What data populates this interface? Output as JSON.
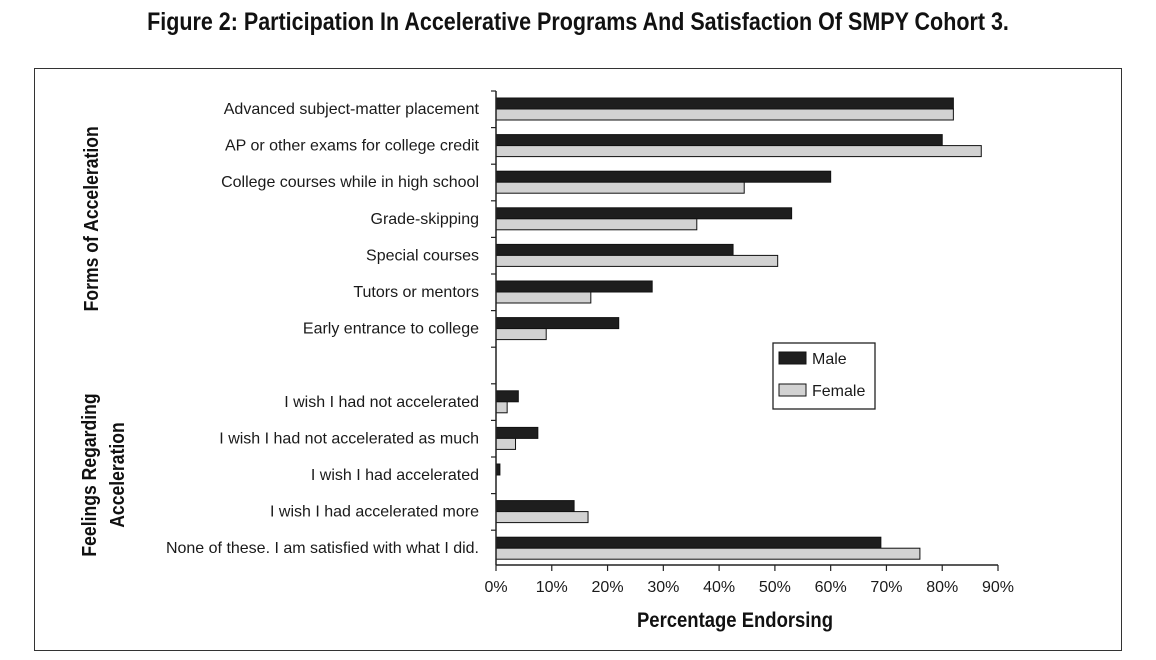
{
  "title": "Figure 2: Participation In Accelerative Programs And Satisfaction Of SMPY Cohort 3.",
  "chart_data": {
    "type": "bar",
    "orientation": "horizontal",
    "groups": [
      {
        "label": "Forms of Acceleration",
        "categories": [
          "Advanced subject-matter placement",
          "AP or other exams for college credit",
          "College courses while in high school",
          "Grade-skipping",
          "Special courses",
          "Tutors or mentors",
          "Early entrance to college"
        ]
      },
      {
        "label_lines": [
          "Feelings Regarding",
          "Acceleration"
        ],
        "categories": [
          "I wish I had not accelerated",
          "I wish I had not accelerated as much",
          "I wish I had accelerated",
          "I wish I had accelerated more",
          "None of these. I am satisfied with what I did."
        ]
      }
    ],
    "series": [
      {
        "name": "Male",
        "color": "#1e1e1e",
        "values": [
          82,
          80,
          60,
          53,
          42.5,
          28,
          22,
          4,
          7.5,
          0.7,
          14,
          69
        ]
      },
      {
        "name": "Female",
        "color": "#d2d2d2",
        "values": [
          82,
          87,
          44.5,
          36,
          50.5,
          17,
          9,
          2,
          3.5,
          0,
          16.5,
          76
        ]
      }
    ],
    "xlabel": "Percentage Endorsing",
    "xlim": [
      0,
      90
    ],
    "xticks": [
      0,
      10,
      20,
      30,
      40,
      50,
      60,
      70,
      80,
      90
    ],
    "tick_suffix": "%",
    "legend_position": "right-middle",
    "grid": false
  }
}
